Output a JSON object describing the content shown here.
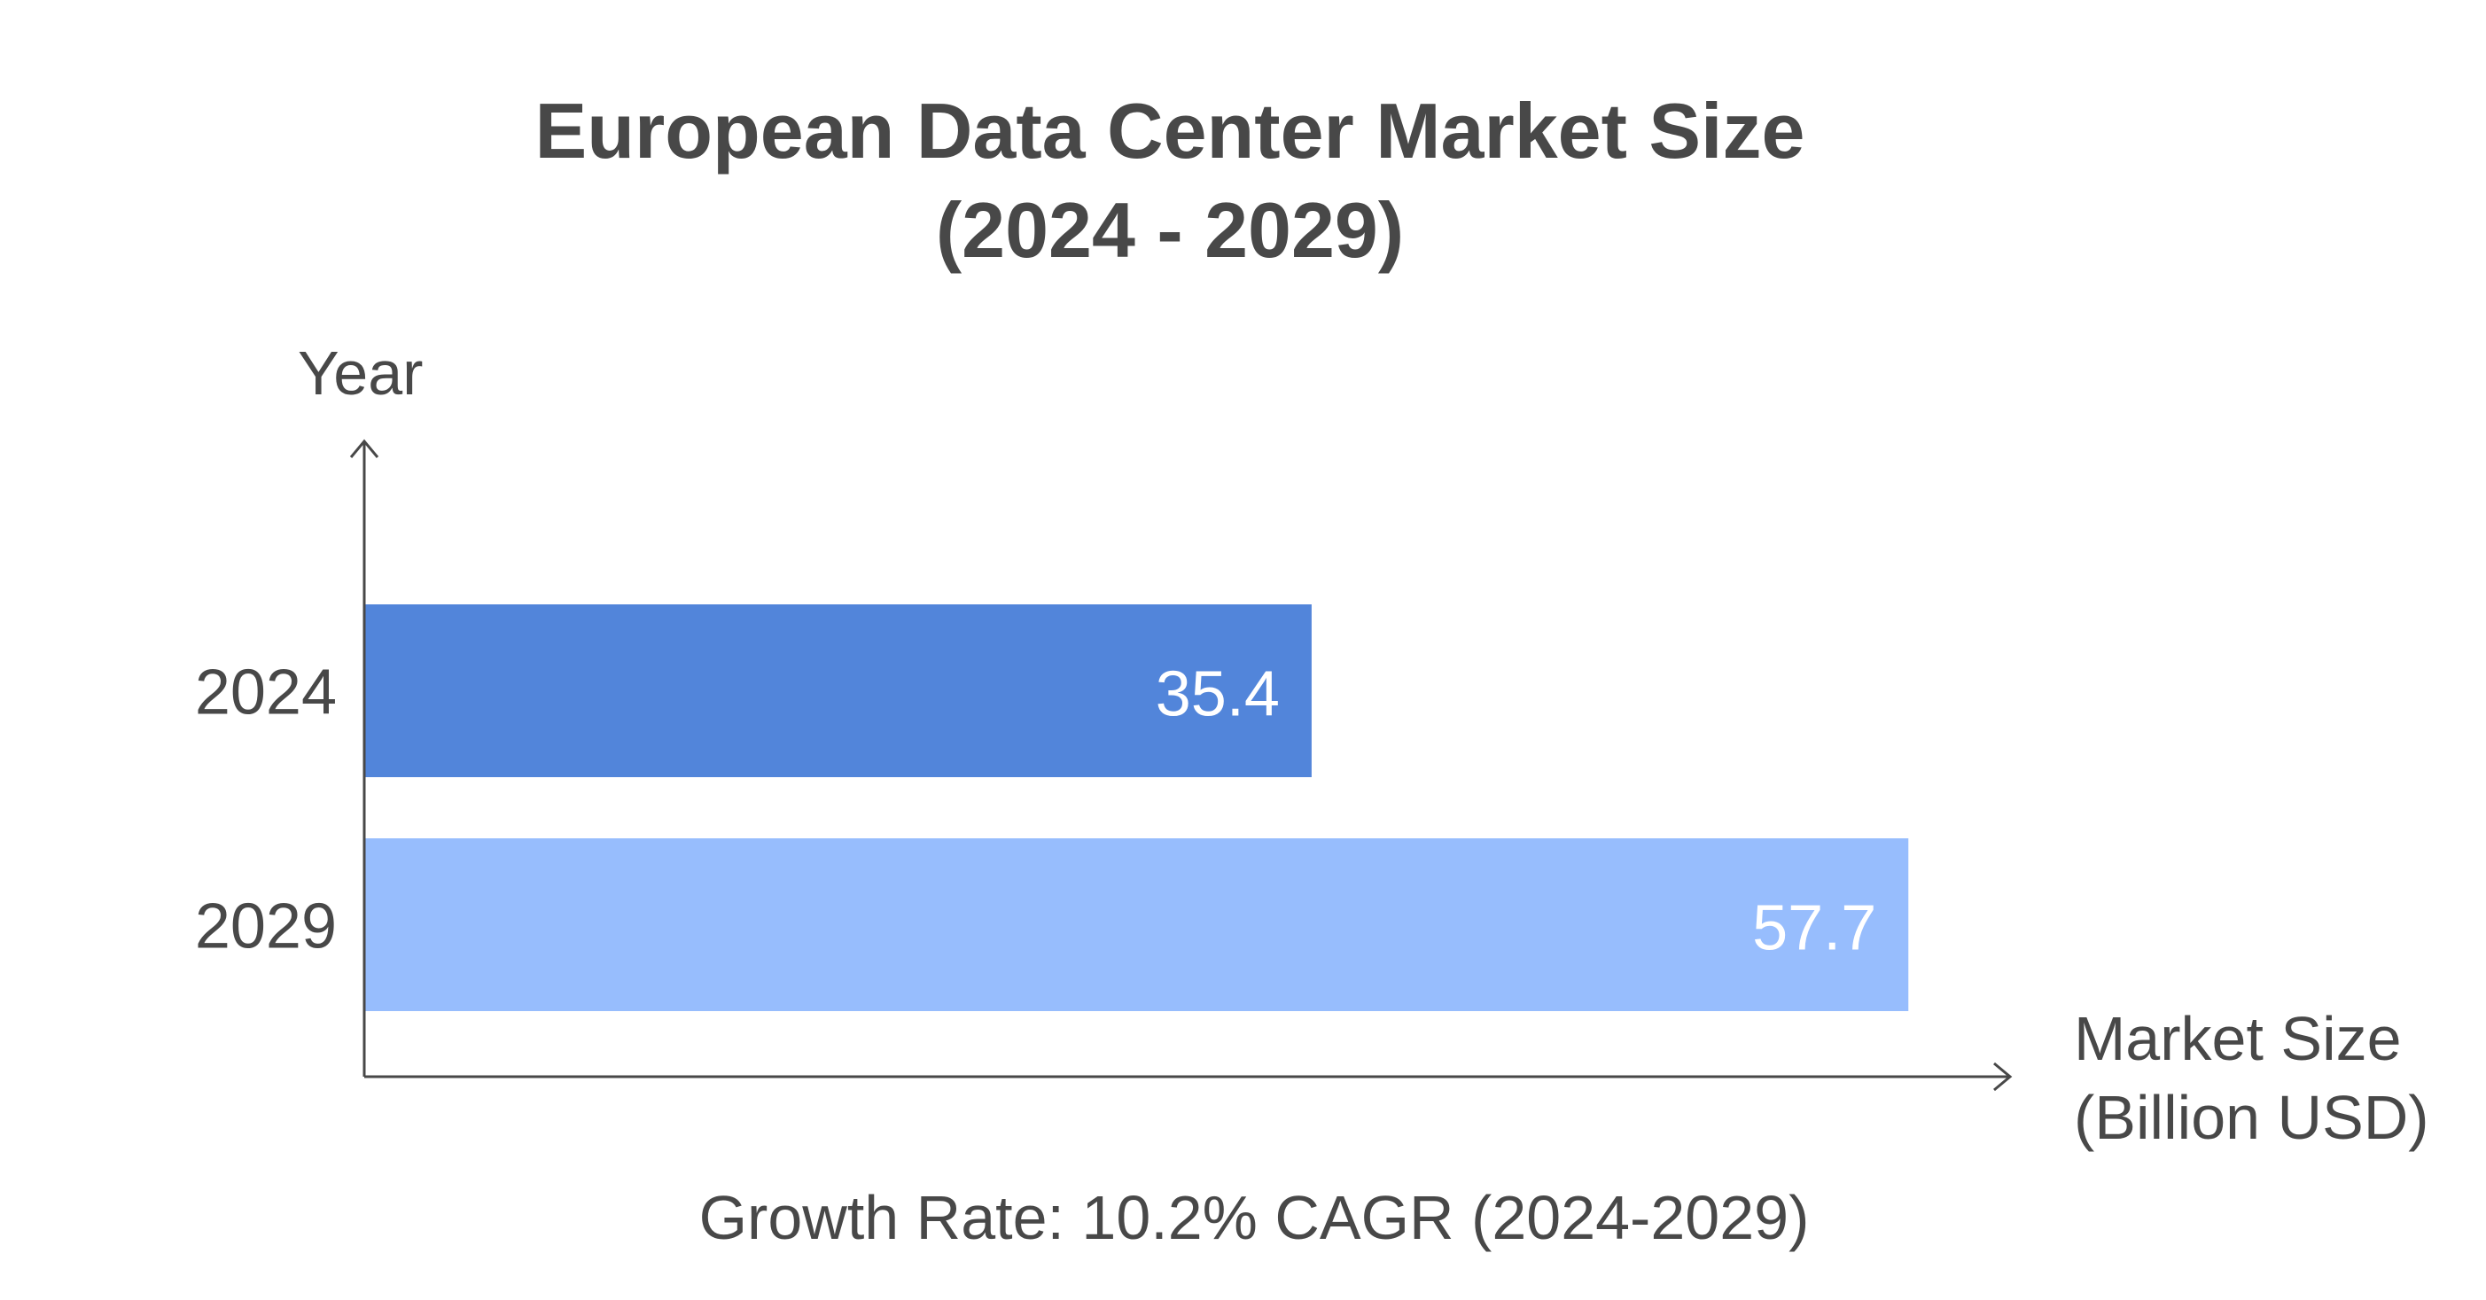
{
  "chart_data": {
    "type": "bar",
    "orientation": "horizontal",
    "title": [
      "European Data Center Market Size",
      "(2024 - 2029)"
    ],
    "ylabel": "Year",
    "xlabel": [
      "Market Size",
      "(Billion USD)"
    ],
    "categories": [
      "2024",
      "2029"
    ],
    "values": [
      35.4,
      57.7
    ],
    "data_labels": [
      "35.4",
      "57.7"
    ],
    "colors": [
      "#5285da",
      "#97bdfd"
    ],
    "xlim": [
      0,
      61.5
    ],
    "grid": false,
    "annotation": "Growth Rate: 10.2% CAGR (2024-2029)"
  }
}
